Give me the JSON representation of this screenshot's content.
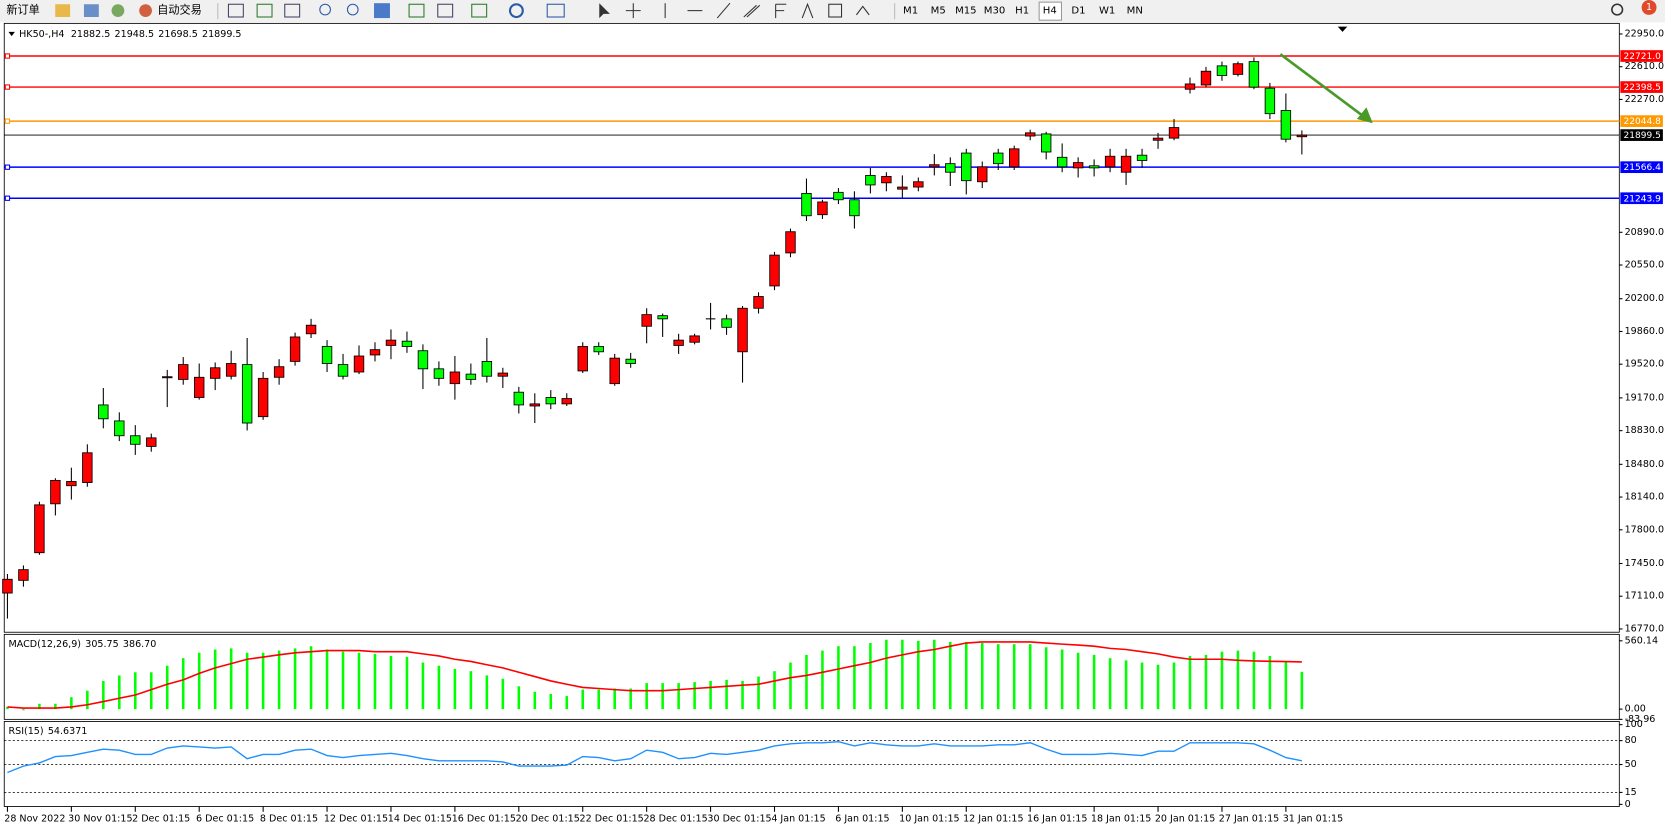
{
  "toolbar": {
    "new_order": "新订单",
    "auto_trading": "自动交易",
    "timeframes": [
      "M1",
      "M5",
      "M15",
      "M30",
      "H1",
      "H4",
      "D1",
      "W1",
      "MN"
    ],
    "notifications": 1
  },
  "chart_data": [
    {
      "type": "candlestick",
      "title": "HK50-,H4",
      "header": [
        21882.5,
        21948.5,
        21698.5,
        21899.5
      ],
      "bull_color": "#ff0000",
      "bear_color": "#00ff00",
      "ylim": [
        16736,
        23060
      ],
      "yticks": [
        {
          "value": 22950,
          "label": "22950.0"
        },
        {
          "value": 22610,
          "label": "22610.0"
        },
        {
          "value": 22270,
          "label": "22270.0"
        },
        {
          "value": 20890,
          "label": "20890.0"
        },
        {
          "value": 20550,
          "label": "20550.0"
        },
        {
          "value": 20200,
          "label": "20200.0"
        },
        {
          "value": 19860,
          "label": "19860.0"
        },
        {
          "value": 19520,
          "label": "19520.0"
        },
        {
          "value": 19170,
          "label": "19170.0"
        },
        {
          "value": 18830,
          "label": "18830.0"
        },
        {
          "value": 18480,
          "label": "18480.0"
        },
        {
          "value": 18140,
          "label": "18140.0"
        },
        {
          "value": 17800,
          "label": "17800.0"
        },
        {
          "value": 17450,
          "label": "17450.0"
        },
        {
          "value": 17110,
          "label": "17110.0"
        },
        {
          "value": 16770,
          "label": "16770.0"
        }
      ],
      "levels": [
        {
          "value": 22721,
          "label": "22721.0",
          "color": "#ff0000"
        },
        {
          "value": 22398.5,
          "color": "#ff0000"
        },
        {
          "value": 22044.8,
          "color": "#ff9900"
        },
        {
          "value": 21899.5,
          "color": "#000000"
        },
        {
          "value": 21566.4,
          "color": "#0000ff"
        },
        {
          "value": 21243.9,
          "color": "#0000ff"
        }
      ],
      "time_labels": [
        "28 Nov 2022",
        "30 Nov 01:15",
        "2 Dec 01:15",
        "6 Dec 01:15",
        "8 Dec 01:15",
        "12 Dec 01:15",
        "14 Dec 01:15",
        "16 Dec 01:15",
        "20 Dec 01:15",
        "22 Dec 01:15",
        "28 Dec 01:15",
        "30 Dec 01:15",
        "4 Jan 01:15",
        "6 Jan 01:15",
        "10 Jan 01:15",
        "12 Jan 01:15",
        "16 Jan 01:15",
        "18 Jan 01:15",
        "20 Jan 01:15",
        "27 Jan 01:15",
        "31 Jan 01:15"
      ],
      "ohlc": [
        [
          17143,
          17341,
          16878,
          17286
        ],
        [
          17275,
          17430,
          17209,
          17386
        ],
        [
          17562,
          18092,
          17540,
          18059
        ],
        [
          18070,
          18335,
          17949,
          18313
        ],
        [
          18258,
          18445,
          18114,
          18302
        ],
        [
          18291,
          18688,
          18247,
          18600
        ],
        [
          19097,
          19273,
          18854,
          18953
        ],
        [
          18931,
          19020,
          18721,
          18777
        ],
        [
          18777,
          18887,
          18578,
          18688
        ],
        [
          18666,
          18799,
          18611,
          18755
        ],
        [
          19384,
          19461,
          19075,
          19390
        ],
        [
          19362,
          19594,
          19307,
          19516
        ],
        [
          19174,
          19527,
          19152,
          19384
        ],
        [
          19373,
          19538,
          19251,
          19483
        ],
        [
          19395,
          19660,
          19362,
          19527
        ],
        [
          19516,
          19792,
          18832,
          18909
        ],
        [
          18975,
          19439,
          18942,
          19373
        ],
        [
          19384,
          19572,
          19307,
          19494
        ],
        [
          19549,
          19848,
          19505,
          19803
        ],
        [
          19836,
          19991,
          19792,
          19925
        ],
        [
          19704,
          19770,
          19439,
          19527
        ],
        [
          19516,
          19627,
          19362,
          19395
        ],
        [
          19439,
          19715,
          19417,
          19605
        ],
        [
          19616,
          19748,
          19549,
          19671
        ],
        [
          19715,
          19881,
          19572,
          19770
        ],
        [
          19759,
          19859,
          19638,
          19704
        ],
        [
          19660,
          19726,
          19262,
          19472
        ],
        [
          19472,
          19549,
          19296,
          19373
        ],
        [
          19318,
          19605,
          19152,
          19439
        ],
        [
          19417,
          19527,
          19307,
          19362
        ],
        [
          19549,
          19792,
          19329,
          19395
        ],
        [
          19395,
          19483,
          19273,
          19428
        ],
        [
          19229,
          19284,
          19008,
          19097
        ],
        [
          19086,
          19218,
          18909,
          19108
        ],
        [
          19174,
          19251,
          19053,
          19108
        ],
        [
          19108,
          19218,
          19086,
          19163
        ],
        [
          19450,
          19748,
          19428,
          19704
        ],
        [
          19704,
          19748,
          19616,
          19649
        ],
        [
          19318,
          19627,
          19296,
          19583
        ],
        [
          19572,
          19638,
          19483,
          19527
        ],
        [
          19914,
          20101,
          19737,
          20035
        ],
        [
          20024,
          20046,
          19803,
          19991
        ],
        [
          19715,
          19836,
          19627,
          19770
        ],
        [
          19748,
          19836,
          19726,
          19814
        ],
        [
          19991,
          20157,
          19881,
          19991
        ],
        [
          19991,
          20035,
          19825,
          19903
        ],
        [
          19649,
          20124,
          19329,
          20101
        ],
        [
          20101,
          20267,
          20046,
          20223
        ],
        [
          20333,
          20687,
          20289,
          20653
        ],
        [
          20676,
          20929,
          20631,
          20896
        ],
        [
          21294,
          21448,
          21007,
          21062
        ],
        [
          21073,
          21228,
          21029,
          21205
        ],
        [
          21305,
          21349,
          21183,
          21228
        ],
        [
          21228,
          21316,
          20929,
          21062
        ],
        [
          21481,
          21559,
          21294,
          21382
        ],
        [
          21404,
          21514,
          21316,
          21470
        ],
        [
          21338,
          21481,
          21250,
          21360
        ],
        [
          21360,
          21459,
          21316,
          21415
        ],
        [
          21570,
          21702,
          21481,
          21592
        ],
        [
          21603,
          21669,
          21371,
          21514
        ],
        [
          21713,
          21757,
          21283,
          21426
        ],
        [
          21415,
          21625,
          21349,
          21570
        ],
        [
          21713,
          21757,
          21537,
          21603
        ],
        [
          21570,
          21790,
          21537,
          21757
        ],
        [
          21890,
          21956,
          21846,
          21923
        ],
        [
          21912,
          21934,
          21647,
          21724
        ],
        [
          21669,
          21813,
          21514,
          21570
        ],
        [
          21559,
          21669,
          21459,
          21614
        ],
        [
          21581,
          21647,
          21470,
          21559
        ],
        [
          21570,
          21757,
          21514,
          21680
        ],
        [
          21514,
          21757,
          21382,
          21680
        ],
        [
          21691,
          21757,
          21559,
          21636
        ],
        [
          21846,
          21923,
          21757,
          21868
        ],
        [
          21868,
          22067,
          21846,
          21978
        ],
        [
          22376,
          22497,
          22332,
          22431
        ],
        [
          22420,
          22608,
          22398,
          22563
        ],
        [
          22619,
          22663,
          22464,
          22519
        ],
        [
          22530,
          22663,
          22508,
          22641
        ],
        [
          22663,
          22707,
          22376,
          22398
        ],
        [
          22387,
          22442,
          22067,
          22122
        ],
        [
          22155,
          22332,
          21824,
          21857
        ],
        [
          21882.5,
          21948.5,
          21698.5,
          21899.5
        ]
      ]
    },
    {
      "type": "macd",
      "title": "MACD(12,26,9)",
      "header": [
        305.75,
        {
          "value": 386.7,
          "label": "386.70"
        }
      ],
      "ylim": [
        -83.96,
        613
      ],
      "yticks": [
        560.14,
        {
          "value": 0,
          "label": "0.00"
        },
        -83.96
      ],
      "histogram_color": "#00ff00",
      "signal_color": "#ff0000",
      "histogram": [
        18,
        -9,
        44,
        44,
        98,
        151,
        231,
        276,
        302,
        302,
        356,
        418,
        462,
        489,
        498,
        462,
        462,
        480,
        498,
        516,
        489,
        471,
        462,
        453,
        436,
        427,
        382,
        356,
        329,
        311,
        276,
        249,
        187,
        142,
        124,
        107,
        160,
        160,
        169,
        169,
        213,
        213,
        213,
        222,
        231,
        240,
        231,
        267,
        311,
        382,
        445,
        480,
        516,
        516,
        542,
        569,
        569,
        560,
        569,
        551,
        551,
        542,
        533,
        533,
        533,
        507,
        489,
        462,
        445,
        418,
        400,
        382,
        364,
        382,
        436,
        445,
        471,
        480,
        471,
        436,
        391,
        305.75
      ],
      "signal": [
        18,
        9,
        9,
        9,
        18,
        36,
        62,
        89,
        116,
        160,
        204,
        240,
        293,
        338,
        373,
        409,
        427,
        445,
        462,
        471,
        480,
        480,
        480,
        471,
        471,
        471,
        453,
        436,
        409,
        391,
        364,
        338,
        302,
        267,
        231,
        204,
        178,
        169,
        160,
        151,
        151,
        151,
        160,
        169,
        178,
        187,
        196,
        204,
        231,
        258,
        276,
        302,
        329,
        356,
        382,
        418,
        445,
        471,
        489,
        516,
        542,
        551,
        551,
        551,
        551,
        542,
        533,
        525,
        516,
        498,
        489,
        471,
        453,
        427,
        409,
        409,
        409,
        400,
        395,
        392,
        390,
        386.7
      ]
    },
    {
      "type": "rsi",
      "title": "RSI(15)",
      "header": 54.6371,
      "color": "#1e90ff",
      "ylim": [
        0,
        100
      ],
      "yticks": [
        100,
        80,
        50,
        15,
        0
      ],
      "levels": [
        80,
        50,
        15
      ],
      "values": [
        40,
        48,
        52,
        60,
        61.3,
        65.3,
        69.3,
        68,
        62.7,
        62.7,
        70.7,
        73.3,
        72,
        70.7,
        72,
        57.3,
        62.7,
        62.7,
        68,
        69.3,
        61.3,
        58.7,
        61.3,
        62.7,
        64,
        61.3,
        57.3,
        54.7,
        54.7,
        54.7,
        54.7,
        53.3,
        48,
        48,
        48,
        49.3,
        60,
        58.7,
        54.7,
        57.3,
        68,
        65.3,
        57.3,
        58.7,
        64,
        62.7,
        65.3,
        68,
        73.3,
        76,
        77.3,
        77.3,
        78.7,
        73.3,
        77.3,
        74.7,
        73.3,
        73.3,
        76,
        73.3,
        73.3,
        73.3,
        74.7,
        74.7,
        77.3,
        69.3,
        62.7,
        62.7,
        62.7,
        64,
        62.7,
        61.3,
        66.7,
        66.7,
        77.3,
        77.3,
        77.3,
        77.3,
        76,
        68,
        58.7,
        54.6371
      ]
    }
  ]
}
